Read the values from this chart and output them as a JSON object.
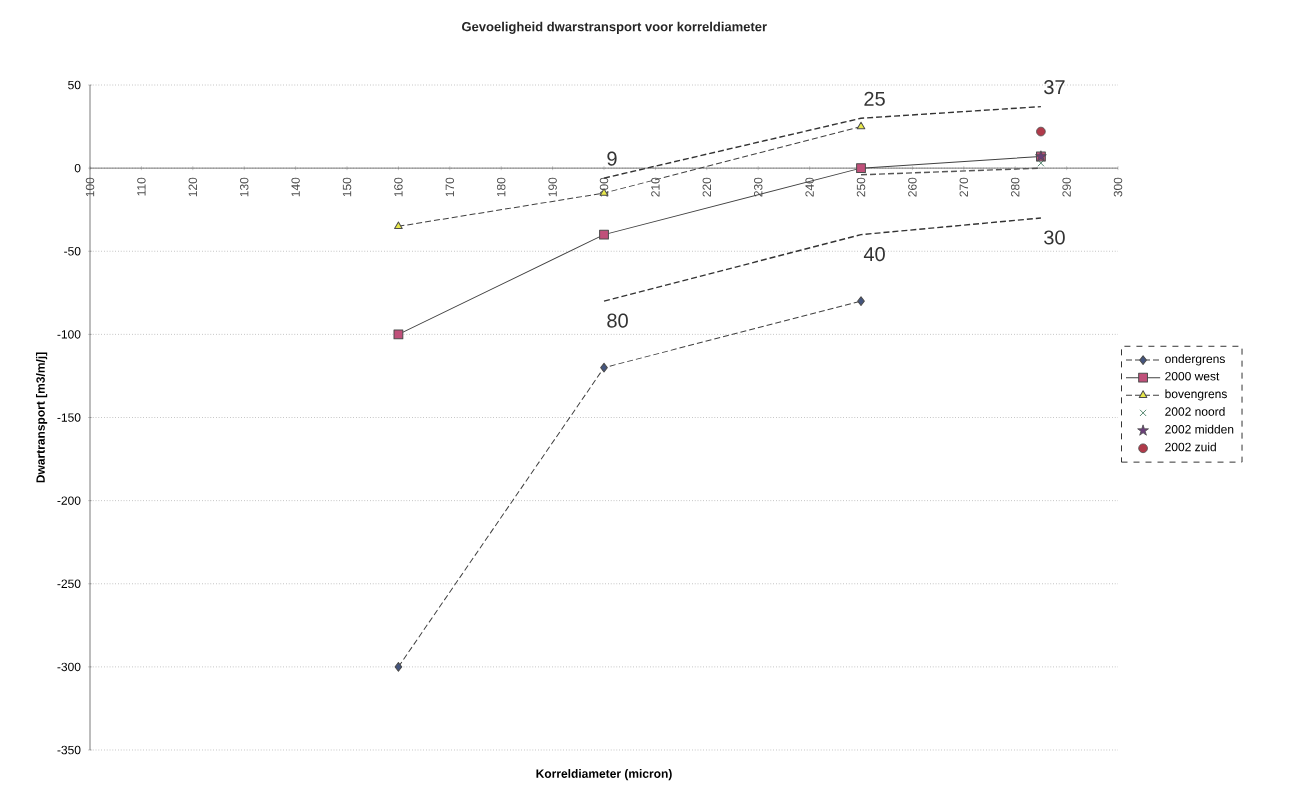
{
  "chart_data": {
    "type": "line",
    "title": "Gevoeligheid dwarstransport voor korreldiameter",
    "xlabel": "Korreldiameter (micron)",
    "ylabel": "Dwartransport [m3/m/j]",
    "xlim": [
      100,
      300
    ],
    "xticks": [
      100,
      110,
      120,
      130,
      140,
      150,
      160,
      170,
      180,
      190,
      200,
      210,
      220,
      230,
      240,
      250,
      260,
      270,
      280,
      290,
      300
    ],
    "ylim": [
      -350,
      50
    ],
    "yticks": [
      -350,
      -300,
      -250,
      -200,
      -150,
      -100,
      -50,
      0,
      50
    ],
    "grid": "y",
    "legend": "right",
    "series": [
      {
        "name": "ondergrens",
        "color": "#44557f",
        "marker": "diamond",
        "line_style": "dashed",
        "x": [
          160,
          200,
          250
        ],
        "values": [
          -300,
          -120,
          -80
        ]
      },
      {
        "name": "2000 west",
        "color": "#c0507a",
        "marker": "square",
        "line_style": "solid",
        "x": [
          160,
          200,
          250,
          285
        ],
        "values": [
          -100,
          -40,
          0,
          7
        ]
      },
      {
        "name": "bovengrens",
        "color": "#e8e84a",
        "marker": "triangle",
        "line_style": "dashed",
        "x": [
          160,
          200,
          250
        ],
        "values": [
          -35,
          -15,
          25
        ]
      },
      {
        "name": "2002 noord",
        "color": "#2f6b4f",
        "type": "scatter",
        "marker": "cross",
        "x": [
          285
        ],
        "values": [
          3
        ]
      },
      {
        "name": "2002 midden",
        "color": "#6b3f7a",
        "type": "scatter",
        "marker": "star",
        "x": [
          285
        ],
        "values": [
          7
        ]
      },
      {
        "name": "2002 zuid",
        "color": "#b03a4a",
        "type": "scatter",
        "marker": "circle",
        "x": [
          285
        ],
        "values": [
          22
        ]
      },
      {
        "color": "#333333",
        "marker": "none",
        "line_style": "dashed",
        "x": [
          200,
          250,
          285
        ],
        "values": [
          -6,
          30,
          37
        ]
      },
      {
        "color": "#333333",
        "marker": "none",
        "line_style": "dashed",
        "x": [
          200,
          250,
          285
        ],
        "values": [
          -80,
          -40,
          -30
        ]
      },
      {
        "color": "#555555",
        "marker": "none",
        "line_style": "dashed",
        "x": [
          250,
          285
        ],
        "values": [
          -4,
          0
        ]
      }
    ],
    "annotations": [
      {
        "text": "9",
        "x": 200,
        "y": -6
      },
      {
        "text": "25",
        "x": 250,
        "y": 30
      },
      {
        "text": "37",
        "x": 285,
        "y": 37
      },
      {
        "text": "80",
        "x": 200,
        "y": -80
      },
      {
        "text": "40",
        "x": 250,
        "y": -40
      },
      {
        "text": "30",
        "x": 285,
        "y": -30
      }
    ]
  }
}
